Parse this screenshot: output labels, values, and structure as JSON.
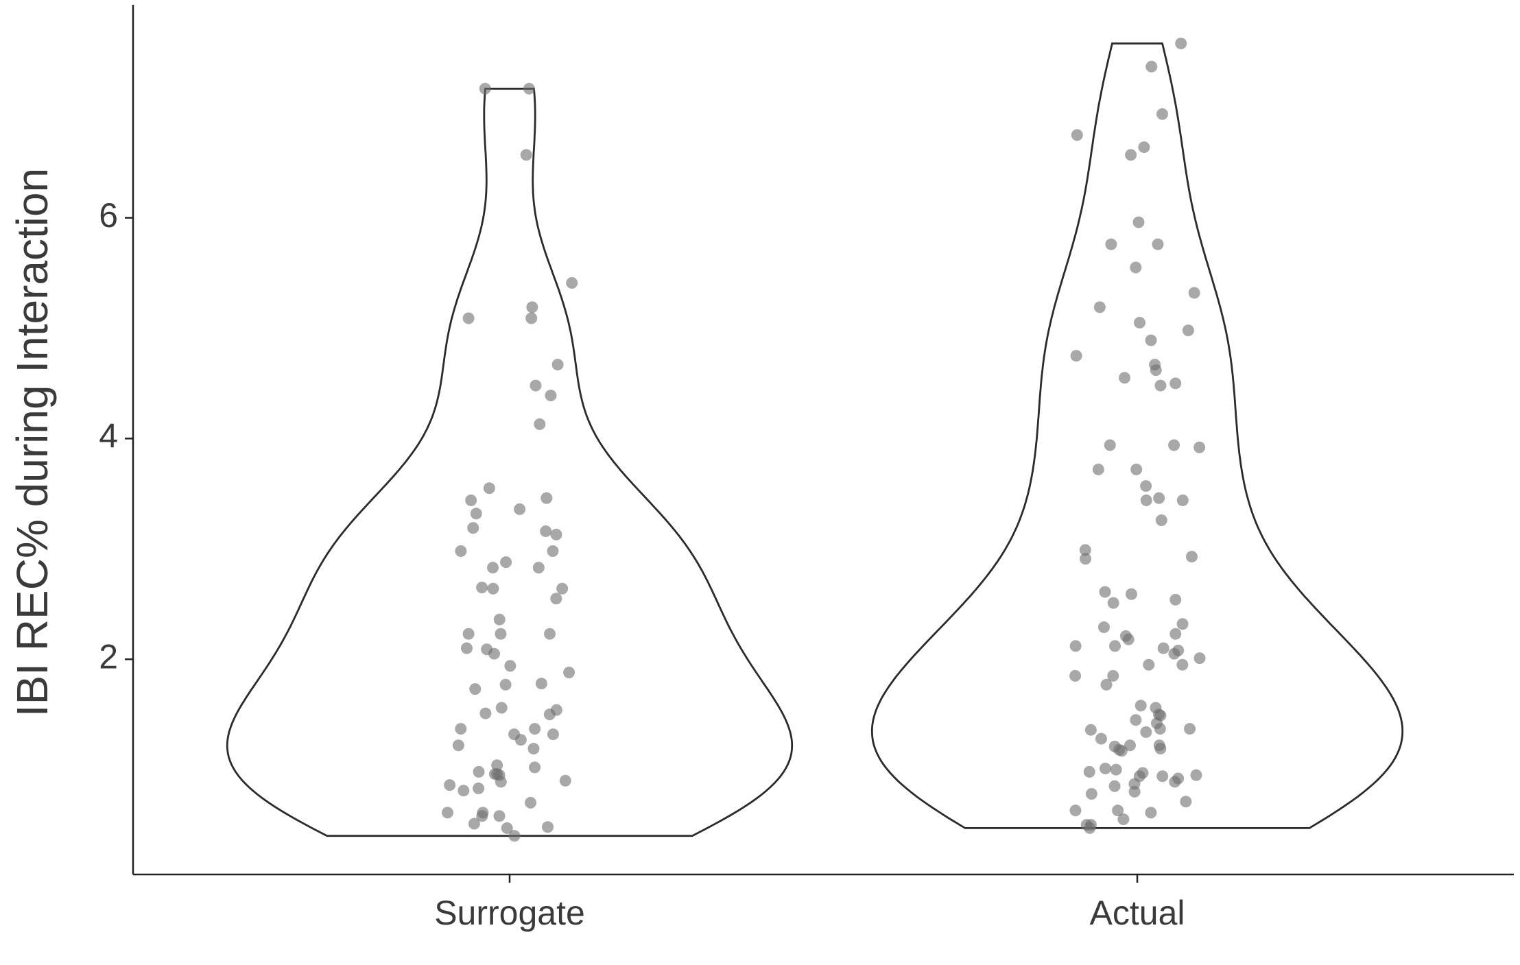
{
  "chart_data": {
    "type": "violin",
    "y_label": "IBI REC% during Interaction",
    "categories": [
      "Surrogate",
      "Actual"
    ],
    "values": [
      [
        7.17,
        7.17,
        6.57,
        5.41,
        5.19,
        5.09,
        5.09,
        4.67,
        4.48,
        4.39,
        4.13,
        3.55,
        3.46,
        3.44,
        3.36,
        3.32,
        3.19,
        3.16,
        3.13,
        2.98,
        2.98,
        2.88,
        2.83,
        2.83,
        2.65,
        2.64,
        2.64,
        2.55,
        2.36,
        2.23,
        2.23,
        2.23,
        2.1,
        2.09,
        2.05,
        1.94,
        1.88,
        1.77,
        1.78,
        1.73,
        1.56,
        1.54,
        1.5,
        1.51,
        1.32,
        1.32,
        1.37,
        1.37,
        1.27,
        1.22,
        1.19,
        1.04,
        1.02,
        0.98,
        0.96,
        0.96,
        0.95,
        0.9,
        0.89,
        0.86,
        0.83,
        0.81,
        0.7,
        0.61,
        0.61,
        0.58,
        0.58,
        0.51,
        0.48,
        0.47,
        0.4
      ],
      [
        7.58,
        7.37,
        6.94,
        6.75,
        6.64,
        6.57,
        5.96,
        5.76,
        5.76,
        5.55,
        5.32,
        5.19,
        5.05,
        4.98,
        4.89,
        4.75,
        4.67,
        4.62,
        4.55,
        4.5,
        4.48,
        3.94,
        3.94,
        3.92,
        3.72,
        3.72,
        3.57,
        3.46,
        3.44,
        3.44,
        3.26,
        2.99,
        2.93,
        2.91,
        2.61,
        2.59,
        2.54,
        2.51,
        2.32,
        2.29,
        2.23,
        2.21,
        2.18,
        2.12,
        2.12,
        2.1,
        2.08,
        2.05,
        2.01,
        1.95,
        1.95,
        1.85,
        1.85,
        1.77,
        1.58,
        1.56,
        1.49,
        1.5,
        1.45,
        1.42,
        1.37,
        1.37,
        1.36,
        1.34,
        1.28,
        1.22,
        1.22,
        1.21,
        1.19,
        1.18,
        1.17,
        1.01,
        1.0,
        0.98,
        0.97,
        0.95,
        0.94,
        0.94,
        0.92,
        0.89,
        0.85,
        0.87,
        0.8,
        0.78,
        0.71,
        0.63,
        0.63,
        0.61,
        0.55,
        0.5,
        0.5,
        0.47
      ]
    ],
    "ylim": [
      0.05,
      7.93
    ],
    "yticks": [
      2,
      4,
      6
    ],
    "point_color": "#6e6e6e",
    "outline_color": "#2b2b2b"
  }
}
